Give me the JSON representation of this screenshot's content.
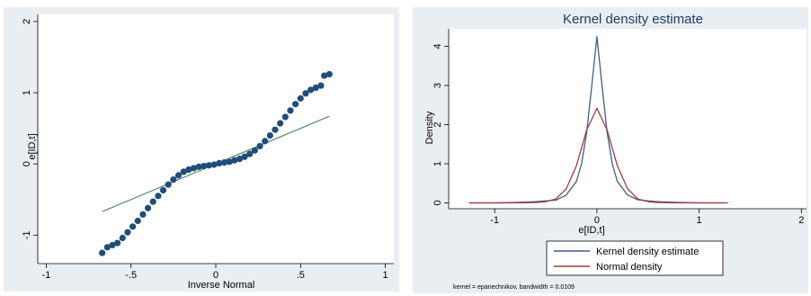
{
  "colors": {
    "panel_bg": "#e9eef2",
    "plot_bg": "#ffffff",
    "points": "#1f4e79",
    "ref_line": "#5a8a6a",
    "kernel_line": "#3a5f8a",
    "normal_line": "#a33a3a",
    "title": "#1c3e5e"
  },
  "chart_data": [
    {
      "type": "scatter",
      "title": "",
      "xlabel": "Inverse Normal",
      "ylabel": "e[ID,t]",
      "xlim": [
        -1.05,
        1.05
      ],
      "ylim": [
        -1.4,
        2.1
      ],
      "xticks": [
        -1,
        -0.5,
        0,
        0.5,
        1
      ],
      "xtick_labels": [
        "-1",
        "-.5",
        "0",
        ".5",
        "1"
      ],
      "yticks": [
        -1,
        0,
        1,
        2
      ],
      "ytick_labels": [
        "-1",
        "0",
        "1",
        "2"
      ],
      "grid": false,
      "reference_line": {
        "x": [
          -0.67,
          0.67
        ],
        "y": [
          -0.67,
          0.67
        ]
      },
      "series": [
        {
          "points": [
            [
              -0.67,
              -1.25
            ],
            [
              -0.64,
              -1.17
            ],
            [
              -0.61,
              -1.14
            ],
            [
              -0.58,
              -1.11
            ],
            [
              -0.55,
              -1.04
            ],
            [
              -0.52,
              -0.96
            ],
            [
              -0.49,
              -0.88
            ],
            [
              -0.46,
              -0.8
            ],
            [
              -0.43,
              -0.71
            ],
            [
              -0.4,
              -0.62
            ],
            [
              -0.37,
              -0.53
            ],
            [
              -0.34,
              -0.45
            ],
            [
              -0.31,
              -0.37
            ],
            [
              -0.28,
              -0.29
            ],
            [
              -0.25,
              -0.22
            ],
            [
              -0.22,
              -0.16
            ],
            [
              -0.19,
              -0.11
            ],
            [
              -0.16,
              -0.08
            ],
            [
              -0.13,
              -0.06
            ],
            [
              -0.1,
              -0.04
            ],
            [
              -0.07,
              -0.03
            ],
            [
              -0.04,
              -0.02
            ],
            [
              -0.01,
              -0.01
            ],
            [
              0.02,
              0.01
            ],
            [
              0.05,
              0.02
            ],
            [
              0.08,
              0.03
            ],
            [
              0.11,
              0.05
            ],
            [
              0.14,
              0.07
            ],
            [
              0.17,
              0.1
            ],
            [
              0.2,
              0.14
            ],
            [
              0.23,
              0.19
            ],
            [
              0.26,
              0.25
            ],
            [
              0.29,
              0.32
            ],
            [
              0.32,
              0.4
            ],
            [
              0.35,
              0.48
            ],
            [
              0.38,
              0.57
            ],
            [
              0.41,
              0.66
            ],
            [
              0.44,
              0.75
            ],
            [
              0.47,
              0.84
            ],
            [
              0.5,
              0.92
            ],
            [
              0.53,
              0.99
            ],
            [
              0.56,
              1.04
            ],
            [
              0.59,
              1.07
            ],
            [
              0.62,
              1.1
            ],
            [
              0.64,
              1.24
            ],
            [
              0.67,
              1.26
            ]
          ]
        }
      ]
    },
    {
      "type": "line",
      "title": "Kernel density estimate",
      "xlabel": "e[ID,t]",
      "ylabel": "Density",
      "xlim": [
        -1.45,
        2.05
      ],
      "ylim": [
        -0.15,
        4.45
      ],
      "xticks": [
        -1,
        0,
        1,
        2
      ],
      "xtick_labels": [
        "-1",
        "0",
        "1",
        "2"
      ],
      "yticks": [
        0,
        1,
        2,
        3,
        4
      ],
      "ytick_labels": [
        "0",
        "1",
        "2",
        "3",
        "4"
      ],
      "grid": false,
      "legend_position": "bottom",
      "note": "kernel = epanechnikov, bandwidth = 0.0109",
      "series": [
        {
          "name": "Kernel density estimate",
          "x": [
            -1.25,
            -1.0,
            -0.8,
            -0.6,
            -0.5,
            -0.4,
            -0.3,
            -0.2,
            -0.15,
            -0.1,
            -0.05,
            0.0,
            0.05,
            0.1,
            0.15,
            0.2,
            0.3,
            0.4,
            0.5,
            0.6,
            0.8,
            1.0,
            1.26
          ],
          "y": [
            0.0,
            0.0,
            0.01,
            0.03,
            0.05,
            0.07,
            0.2,
            0.55,
            1.0,
            1.8,
            3.0,
            4.25,
            3.0,
            1.8,
            1.0,
            0.55,
            0.2,
            0.08,
            0.05,
            0.03,
            0.01,
            0.0,
            0.0
          ]
        },
        {
          "name": "Normal density",
          "x": [
            -1.25,
            -1.0,
            -0.8,
            -0.6,
            -0.5,
            -0.4,
            -0.3,
            -0.2,
            -0.1,
            0.0,
            0.1,
            0.2,
            0.3,
            0.4,
            0.5,
            0.6,
            0.8,
            1.0,
            1.28
          ],
          "y": [
            0.0,
            0.0,
            0.0,
            0.01,
            0.03,
            0.1,
            0.36,
            0.95,
            1.86,
            2.42,
            1.86,
            0.95,
            0.36,
            0.1,
            0.03,
            0.01,
            0.0,
            0.0,
            0.0
          ]
        }
      ]
    }
  ]
}
